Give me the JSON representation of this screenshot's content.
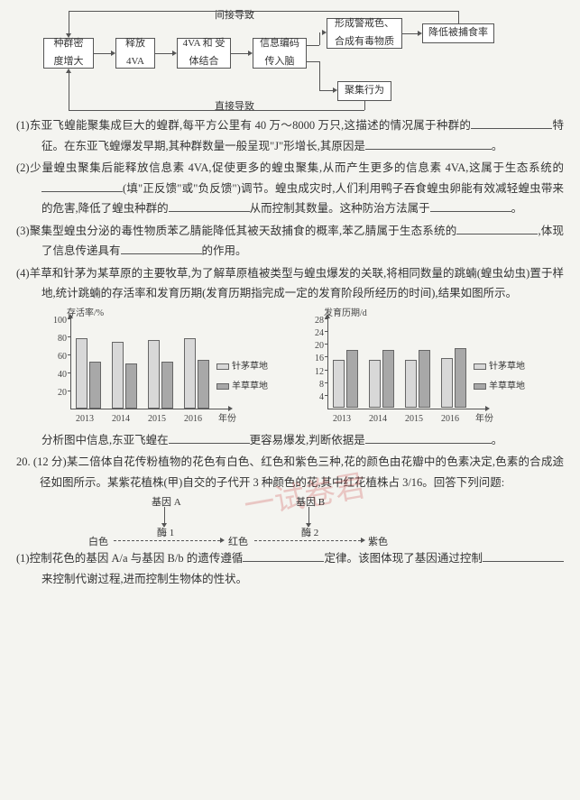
{
  "diagram": {
    "indirect_label": "间接导致",
    "direct_label": "直接导致",
    "boxes": {
      "b1": "种群密\n度增大",
      "b2": "释放\n4VA",
      "b3": "4VA 和\n受体结合",
      "b4": "信息编码\n传入脑",
      "b5": "形成警戒色、\n合成有毒物质",
      "b6": "降低被捕食率",
      "b7": "聚集行为"
    }
  },
  "q1": "(1)东亚飞蝗能聚集成巨大的蝗群,每平方公里有 40 万～8000 万只,这描述的情况属于种群的__________特征。在东亚飞蝗爆发早期,其种群数量一般呈现\"J\"形增长,其原因是____________________。",
  "q2_a": "(2)少量蝗虫聚集后能释放信息素 4VA,促使更多的蝗虫聚集,从而产生更多的信息素 4VA,这属于生态系统的____________(填\"正反馈\"或\"负反馈\")调节。蝗虫成灾时,人们利用鸭子吞食蝗虫卵能有效减轻蝗虫带来的危害,降低了蝗虫种群的__________从而控制其数量。这种防治方法属于__________。",
  "q3": "(3)聚集型蝗虫分泌的毒性物质苯乙腈能降低其被天敌捕食的概率,苯乙腈属于生态系统的____________,体现了信息传递具有____________的作用。",
  "q4": "(4)羊草和针茅为某草原的主要牧草,为了解草原植被类型与蝗虫爆发的关联,将相同数量的跳蝻(蝗虫幼虫)置于样地,统计跳蝻的存活率和发育历期(发育历期指完成一定的发育阶段所经历的时间),结果如图所示。",
  "chart1": {
    "ylabel": "存活率/%",
    "xlabel": "年份",
    "yticks": [
      "20",
      "40",
      "60",
      "80",
      "100"
    ],
    "years": [
      "2013",
      "2014",
      "2015",
      "2016"
    ],
    "series": [
      {
        "name": "针茅草地",
        "color": "#d8d8d8",
        "vals": [
          78,
          74,
          76,
          78
        ]
      },
      {
        "name": "羊草草地",
        "color": "#a8a8a8",
        "vals": [
          52,
          50,
          52,
          54
        ]
      }
    ]
  },
  "chart2": {
    "ylabel": "发育历期/d",
    "xlabel": "年份",
    "yticks": [
      "4",
      "8",
      "12",
      "16",
      "20",
      "24",
      "28"
    ],
    "years": [
      "2013",
      "2014",
      "2015",
      "2016"
    ],
    "series": [
      {
        "name": "针茅草地",
        "color": "#d8d8d8",
        "vals": [
          15,
          15,
          15,
          15.5
        ]
      },
      {
        "name": "羊草草地",
        "color": "#a8a8a8",
        "vals": [
          18,
          18,
          18,
          18.5
        ]
      }
    ]
  },
  "q4_end": "分析图中信息,东亚飞蝗在__________更容易爆发,判断依据是____________。",
  "q20_intro": "20. (12 分)某二倍体自花传粉植物的花色有白色、红色和紫色三种,花的颜色由花瓣中的色素决定,色素的合成途径如图所示。某紫花植株(甲)自交的子代开 3 种颜色的花,其中红花植株占 3/16。回答下列问题:",
  "synth": {
    "geneA": "基因 A",
    "geneB": "基因 B",
    "e1": "酶 1",
    "e2": "酶 2",
    "white": "白色",
    "red": "红色",
    "purple": "紫色"
  },
  "q20_1": "(1)控制花色的基因 A/a 与基因 B/b 的遗传遵循__________定律。该图体现了基因通过控制__________来控制代谢过程,进而控制生物体的性状。",
  "watermark": "一试卷君"
}
